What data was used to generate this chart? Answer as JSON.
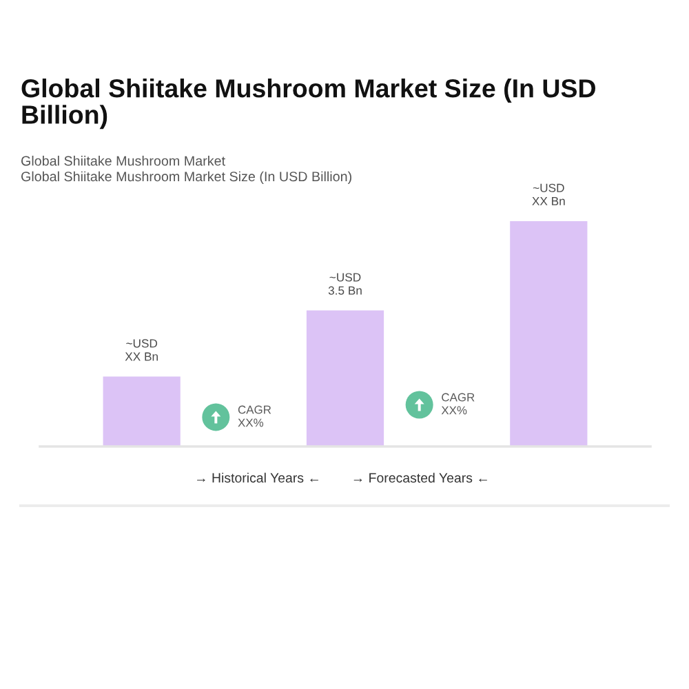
{
  "chart_data": {
    "type": "bar",
    "title": "Global Shiitake Mushroom Market Size (In USD Billion)",
    "subtitle": "Global Shiitake Mushroom Market\nGlobal Shiitake Mushroom Market Size (In USD Billion)",
    "categories": [
      null,
      null,
      null
    ],
    "values": [
      1.8,
      3.5,
      5.8
    ],
    "color": "#dcc3f6",
    "value_labels": [
      "~USD\nXX Bn",
      "~USD\n3.5 Bn",
      "~USD\nXX Bn"
    ],
    "annotations": [
      "CAGR\nXX%",
      "CAGR\nXX%",
      "→ Historical Years ←",
      "→ Forecasted Years ←"
    ]
  }
}
